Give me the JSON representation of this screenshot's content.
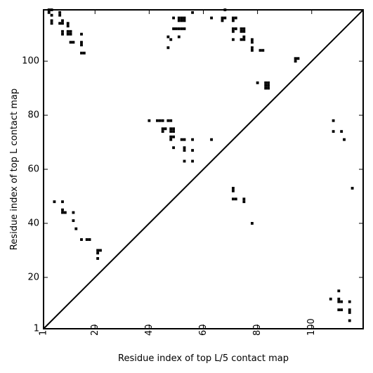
{
  "chart_data": {
    "type": "scatter",
    "xlabel": "Residue index of top L/5 contact map",
    "ylabel": "Residue index of top L contact map",
    "xlim": [
      1,
      119
    ],
    "ylim": [
      1,
      119
    ],
    "x_ticks": [
      1,
      20,
      40,
      60,
      80,
      100
    ],
    "y_ticks": [
      1,
      20,
      40,
      60,
      80,
      100
    ],
    "x_tick_rotation": -90,
    "grid": false,
    "marker": "square",
    "marker_color": "#000000",
    "line_color": "#000000",
    "reference_line": {
      "from": [
        1,
        1
      ],
      "to": [
        119,
        119
      ]
    },
    "series": [
      {
        "points": [
          [
            3,
            119
          ],
          [
            3,
            118
          ],
          [
            4,
            119
          ],
          [
            4,
            117
          ],
          [
            4,
            115
          ],
          [
            4,
            114
          ],
          [
            7,
            118
          ],
          [
            7,
            117
          ],
          [
            7,
            114
          ],
          [
            8,
            115
          ],
          [
            8,
            114
          ],
          [
            8,
            111
          ],
          [
            8,
            110
          ],
          [
            10,
            114
          ],
          [
            10,
            113
          ],
          [
            10,
            111
          ],
          [
            10,
            110
          ],
          [
            11,
            111
          ],
          [
            11,
            110
          ],
          [
            11,
            107
          ],
          [
            12,
            107
          ],
          [
            15,
            110
          ],
          [
            15,
            107
          ],
          [
            15,
            106
          ],
          [
            15,
            103
          ],
          [
            16,
            103
          ],
          [
            47,
            109
          ],
          [
            47,
            105
          ],
          [
            48,
            108
          ],
          [
            49,
            116
          ],
          [
            49,
            112
          ],
          [
            50,
            112
          ],
          [
            51,
            116
          ],
          [
            51,
            115
          ],
          [
            51,
            112
          ],
          [
            51,
            109
          ],
          [
            52,
            116
          ],
          [
            52,
            115
          ],
          [
            52,
            112
          ],
          [
            53,
            116
          ],
          [
            53,
            115
          ],
          [
            53,
            112
          ],
          [
            56,
            118
          ],
          [
            63,
            116
          ],
          [
            67,
            116
          ],
          [
            67,
            115
          ],
          [
            68,
            119
          ],
          [
            68,
            116
          ],
          [
            71,
            116
          ],
          [
            71,
            115
          ],
          [
            71,
            112
          ],
          [
            71,
            111
          ],
          [
            71,
            108
          ],
          [
            72,
            116
          ],
          [
            72,
            112
          ],
          [
            74,
            112
          ],
          [
            74,
            111
          ],
          [
            74,
            108
          ],
          [
            75,
            112
          ],
          [
            75,
            111
          ],
          [
            75,
            109
          ],
          [
            75,
            108
          ],
          [
            78,
            108
          ],
          [
            78,
            107
          ],
          [
            78,
            105
          ],
          [
            78,
            104
          ],
          [
            81,
            104
          ],
          [
            82,
            104
          ],
          [
            94,
            101
          ],
          [
            94,
            100
          ],
          [
            95,
            101
          ],
          [
            80,
            92
          ],
          [
            83,
            92
          ],
          [
            83,
            91
          ],
          [
            84,
            92
          ],
          [
            84,
            91
          ],
          [
            84,
            90
          ],
          [
            83,
            90
          ],
          [
            40,
            78
          ],
          [
            43,
            78
          ],
          [
            44,
            78
          ],
          [
            45,
            78
          ],
          [
            47,
            78
          ],
          [
            48,
            78
          ],
          [
            45,
            75
          ],
          [
            45,
            74
          ],
          [
            46,
            75
          ],
          [
            48,
            75
          ],
          [
            48,
            74
          ],
          [
            49,
            75
          ],
          [
            49,
            74
          ],
          [
            48,
            72
          ],
          [
            48,
            71
          ],
          [
            49,
            72
          ],
          [
            52,
            71
          ],
          [
            53,
            71
          ],
          [
            56,
            71
          ],
          [
            63,
            71
          ],
          [
            49,
            68
          ],
          [
            53,
            68
          ],
          [
            53,
            67
          ],
          [
            56,
            67
          ],
          [
            53,
            63
          ],
          [
            56,
            63
          ],
          [
            108,
            78
          ],
          [
            108,
            74
          ],
          [
            111,
            74
          ],
          [
            112,
            71
          ],
          [
            115,
            53
          ],
          [
            71,
            53
          ],
          [
            71,
            52
          ],
          [
            71,
            49
          ],
          [
            72,
            49
          ],
          [
            75,
            49
          ],
          [
            75,
            48
          ],
          [
            78,
            40
          ],
          [
            5,
            48
          ],
          [
            8,
            48
          ],
          [
            8,
            45
          ],
          [
            8,
            44
          ],
          [
            9,
            44
          ],
          [
            12,
            44
          ],
          [
            12,
            41
          ],
          [
            13,
            38
          ],
          [
            15,
            34
          ],
          [
            17,
            34
          ],
          [
            18,
            34
          ],
          [
            21,
            30
          ],
          [
            21,
            29
          ],
          [
            22,
            30
          ],
          [
            21,
            27
          ],
          [
            110,
            15
          ],
          [
            107,
            12
          ],
          [
            110,
            12
          ],
          [
            110,
            11
          ],
          [
            111,
            11
          ],
          [
            114,
            11
          ],
          [
            110,
            8
          ],
          [
            111,
            8
          ],
          [
            114,
            8
          ],
          [
            114,
            7
          ],
          [
            114,
            4
          ]
        ]
      }
    ]
  }
}
